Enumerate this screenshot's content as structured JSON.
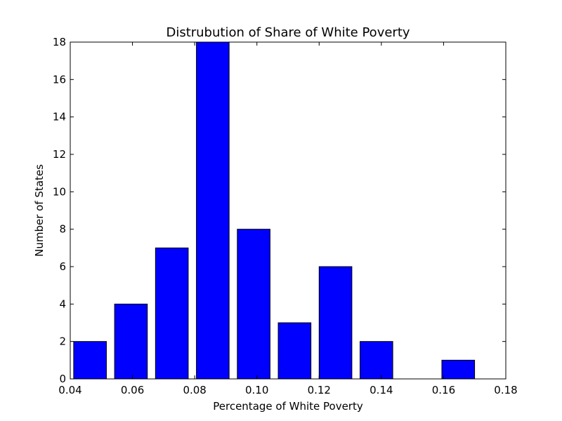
{
  "chart_data": {
    "type": "bar",
    "title": "Distrubution of Share of White Poverty",
    "xlabel": "Percentage of White Poverty",
    "ylabel": "Number of States",
    "xlim": [
      0.04,
      0.18
    ],
    "ylim": [
      0,
      18
    ],
    "x_ticks": [
      "0.04",
      "0.06",
      "0.08",
      "0.10",
      "0.12",
      "0.14",
      "0.16",
      "0.18"
    ],
    "y_ticks": [
      "0",
      "2",
      "4",
      "6",
      "8",
      "10",
      "12",
      "14",
      "16",
      "18"
    ],
    "bin_start": 0.0411,
    "bin_width": 0.01315,
    "bar_fraction": 0.8,
    "values": [
      2,
      4,
      7,
      18,
      8,
      3,
      6,
      2,
      0,
      1
    ],
    "bar_color": "#0000ff",
    "grid": false
  }
}
